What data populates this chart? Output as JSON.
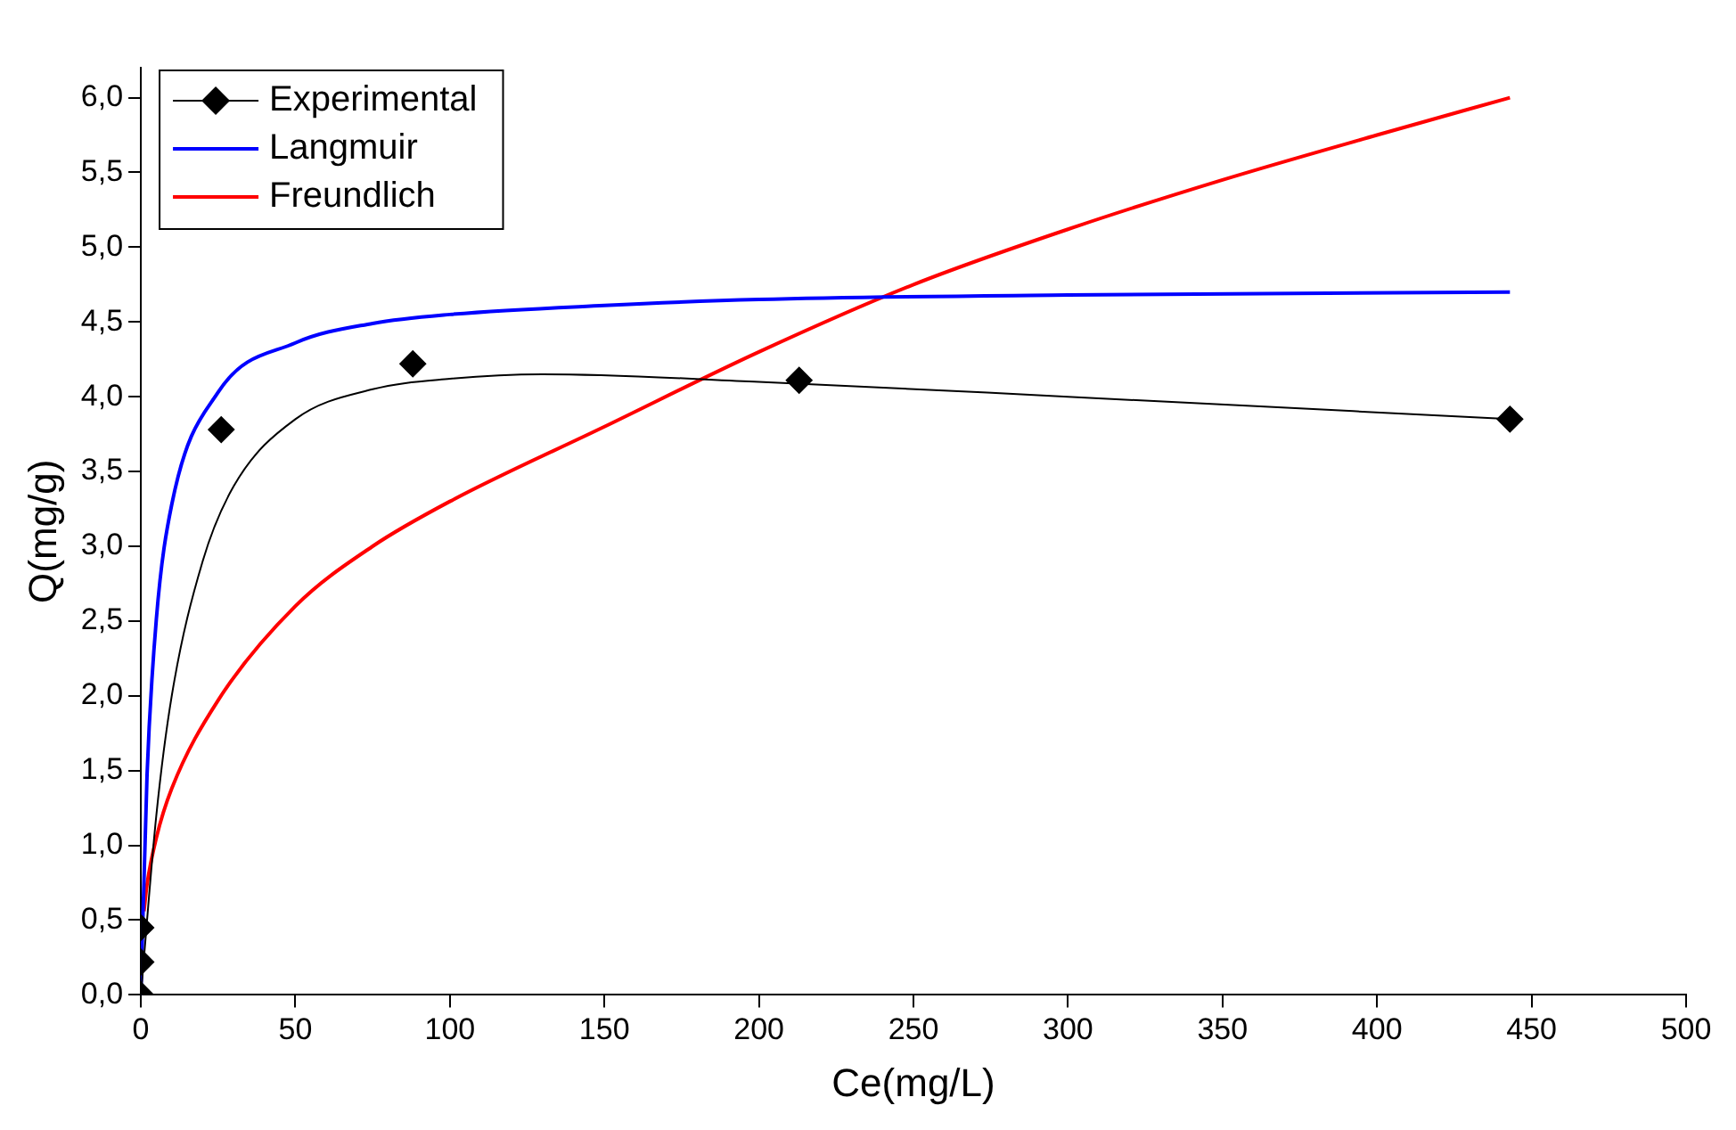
{
  "chart_data": {
    "type": "scatter",
    "xlabel": "Ce(mg/L)",
    "ylabel": "Q(mg/g)",
    "xlim": [
      0,
      500
    ],
    "ylim": [
      0,
      6.2
    ],
    "xticks": [
      0,
      50,
      100,
      150,
      200,
      250,
      300,
      350,
      400,
      450,
      500
    ],
    "yticks": [
      {
        "value": 0,
        "label": "0,0"
      },
      {
        "value": 0.5,
        "label": "0,5"
      },
      {
        "value": 1,
        "label": "1,0"
      },
      {
        "value": 1.5,
        "label": "1,5"
      },
      {
        "value": 2,
        "label": "2,0"
      },
      {
        "value": 2.5,
        "label": "2,5"
      },
      {
        "value": 3,
        "label": "3,0"
      },
      {
        "value": 3.5,
        "label": "3,5"
      },
      {
        "value": 4,
        "label": "4,0"
      },
      {
        "value": 4.5,
        "label": "4,5"
      },
      {
        "value": 5,
        "label": "5,0"
      },
      {
        "value": 5.5,
        "label": "5,5"
      },
      {
        "value": 6,
        "label": "6,0"
      }
    ],
    "grid": false,
    "legend": "top left",
    "series": [
      {
        "name": "Experimental",
        "type": "scatter",
        "marker": "diamond",
        "color": "#000000",
        "x": [
          0,
          0,
          0,
          26,
          88,
          213,
          443
        ],
        "values": [
          0,
          0.22,
          0.45,
          3.78,
          4.22,
          4.11,
          3.85
        ]
      },
      {
        "type": "line",
        "marker": "none",
        "color": "#000000",
        "x": [
          0,
          5,
          10,
          20,
          30,
          50,
          75,
          100,
          130,
          200,
          300,
          443
        ],
        "values": [
          0,
          1.2,
          2.0,
          2.9,
          3.4,
          3.85,
          4.05,
          4.12,
          4.15,
          4.1,
          4.0,
          3.85
        ]
      },
      {
        "name": "Langmuir",
        "type": "line",
        "marker": "none",
        "color": "#0000ff",
        "x": [
          0,
          2,
          5,
          10,
          25,
          50,
          75,
          100,
          150,
          200,
          300,
          443
        ],
        "values": [
          0,
          1.47,
          2.51,
          3.28,
          4.03,
          4.36,
          4.49,
          4.55,
          4.61,
          4.65,
          4.68,
          4.7
        ]
      },
      {
        "name": "Freundlich",
        "type": "line",
        "marker": "none",
        "color": "#ff0000",
        "x": [
          1,
          2,
          5,
          10,
          25,
          50,
          75,
          100,
          150,
          200,
          250,
          300,
          350,
          400,
          443
        ],
        "values": [
          0.56,
          0.74,
          1.05,
          1.38,
          1.97,
          2.6,
          3.0,
          3.3,
          3.8,
          4.3,
          4.75,
          5.12,
          5.45,
          5.75,
          6.0
        ]
      }
    ]
  }
}
